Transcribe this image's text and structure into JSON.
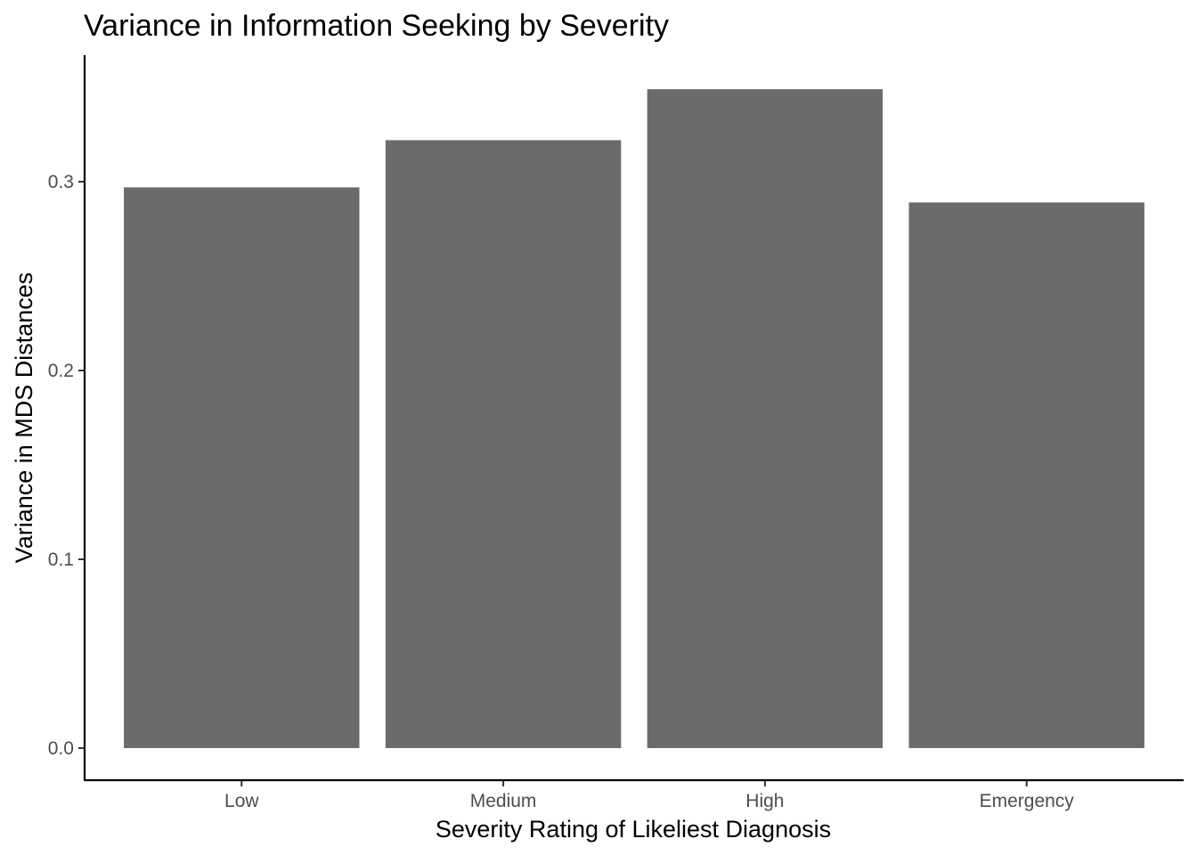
{
  "chart_data": {
    "type": "bar",
    "title": "Variance in Information Seeking by Severity",
    "xlabel": "Severity Rating of Likeliest Diagnosis",
    "ylabel": "Variance in MDS Distances",
    "categories": [
      "Low",
      "Medium",
      "High",
      "Emergency"
    ],
    "values": [
      0.297,
      0.322,
      0.349,
      0.289
    ],
    "ylim": [
      -0.017,
      0.367
    ],
    "yticks": [
      0.0,
      0.1,
      0.2,
      0.3
    ],
    "ytick_labels": [
      "0.0",
      "0.1",
      "0.2",
      "0.3"
    ],
    "bar_color": "#6b6b6b",
    "grid": false,
    "legend": "none"
  }
}
